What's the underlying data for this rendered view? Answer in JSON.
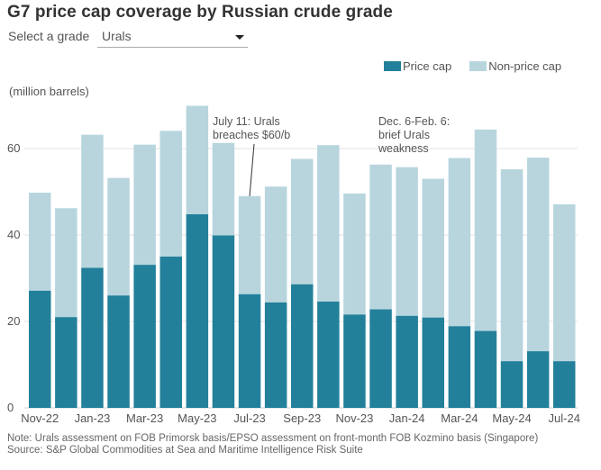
{
  "title": "G7 price cap coverage by Russian crude grade",
  "selector": {
    "label": "Select a grade",
    "selected": "Urals"
  },
  "legend": [
    {
      "name": "Price cap",
      "color": "#23809a"
    },
    {
      "name": "Non-price cap",
      "color": "#b8d5de"
    }
  ],
  "unit_label": "(million barrels)",
  "notes": {
    "note": "Note: Urals assessment on FOB Primorsk basis/EPSO assessment on front-month FOB Kozmino basis (Singapore)",
    "source": "Source: S&P Global Commodities at Sea and Maritime Intelligence Risk Suite"
  },
  "chart_data": {
    "type": "bar",
    "stacked": true,
    "title": "G7 price cap coverage by Russian crude grade",
    "xlabel": "",
    "ylabel": "(million barrels)",
    "ylim": [
      0,
      70
    ],
    "yticks": [
      0,
      20,
      40,
      60
    ],
    "grid": true,
    "legend_position": "top-right",
    "categories": [
      "Nov-22",
      "Dec-22",
      "Jan-23",
      "Feb-23",
      "Mar-23",
      "Apr-23",
      "May-23",
      "Jun-23",
      "Jul-23",
      "Aug-23",
      "Sep-23",
      "Oct-23",
      "Nov-23",
      "Dec-23",
      "Jan-24",
      "Feb-24",
      "Mar-24",
      "Apr-24",
      "May-24",
      "Jun-24",
      "Jul-24"
    ],
    "xtick_labels": [
      "Nov-22",
      "Jan-23",
      "Mar-23",
      "May-23",
      "Jul-23",
      "Sep-23",
      "Nov-23",
      "Jan-24",
      "Mar-24",
      "May-24",
      "Jul-24"
    ],
    "series": [
      {
        "name": "Price cap",
        "color": "#23809a",
        "values": [
          27.1,
          21.0,
          32.4,
          26.0,
          33.1,
          35.0,
          44.8,
          39.9,
          26.3,
          24.4,
          28.6,
          24.6,
          21.6,
          22.8,
          21.3,
          20.9,
          18.9,
          17.8,
          10.8,
          13.1,
          10.8
        ]
      },
      {
        "name": "Non-price cap",
        "color": "#b8d5de",
        "values": [
          22.7,
          25.2,
          30.8,
          27.2,
          27.8,
          29.1,
          25.1,
          21.4,
          22.7,
          26.8,
          29.0,
          36.2,
          28.0,
          33.5,
          34.4,
          32.1,
          38.9,
          46.6,
          44.4,
          44.8,
          36.3
        ]
      }
    ],
    "totals": [
      49.8,
      46.2,
      63.2,
      53.2,
      60.9,
      64.1,
      69.9,
      61.3,
      49.0,
      51.2,
      57.6,
      60.8,
      49.6,
      56.3,
      55.7,
      53.0,
      57.8,
      64.4,
      55.2,
      57.9,
      47.1
    ],
    "annotations": [
      {
        "text_lines": [
          "July 11: Urals",
          "breaches $60/b"
        ],
        "category": "Jul-23"
      },
      {
        "text_lines": [
          "Dec. 6-Feb. 6:",
          "brief Urals",
          "weakness"
        ],
        "category": "Jan-24"
      }
    ]
  }
}
